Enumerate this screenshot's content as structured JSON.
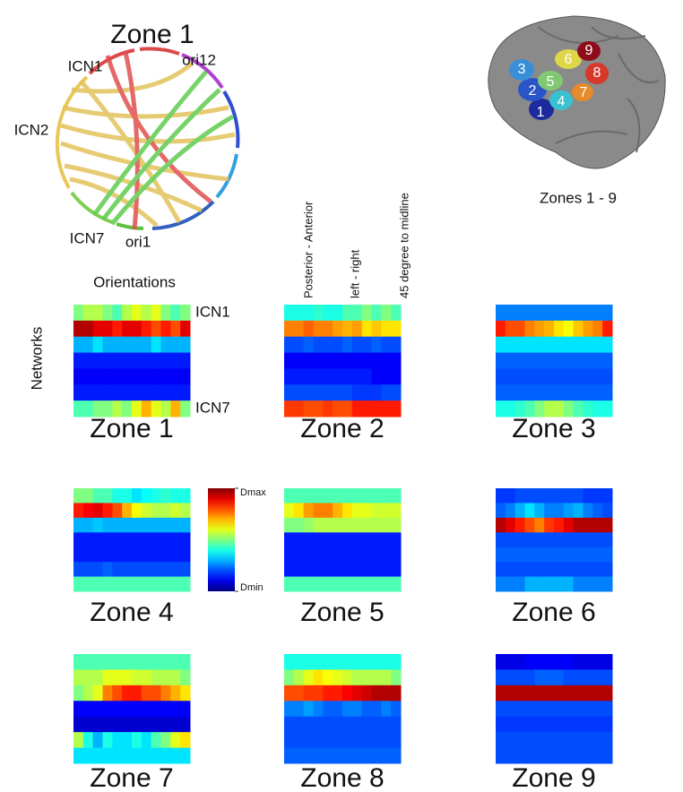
{
  "chord": {
    "title": "Zone 1",
    "labels": [
      "ICN1",
      "ori12",
      "ICN2",
      "ICN7",
      "ori1"
    ]
  },
  "brain": {
    "zone_numbers": [
      "1",
      "2",
      "3",
      "4",
      "5",
      "6",
      "7",
      "8",
      "9"
    ],
    "caption": "Zones 1 - 9"
  },
  "chart_data": {
    "type": "heatmap",
    "x_label": "Orientations",
    "y_label": "Networks",
    "row_labels": [
      "ICN1",
      null,
      null,
      null,
      null,
      null,
      "ICN7"
    ],
    "column_annotations": [
      "Posterior - Anterior",
      "left - right",
      "45 degree to midline"
    ],
    "clim": [
      0,
      1
    ],
    "colorbar_ticks": [
      {
        "value": 1,
        "label": "Dmax"
      },
      {
        "value": 0,
        "label": "Dmin"
      }
    ],
    "panels": [
      {
        "title": "Zone 1",
        "values": [
          [
            0.5,
            0.55,
            0.55,
            0.5,
            0.45,
            0.55,
            0.6,
            0.55,
            0.6,
            0.5,
            0.45,
            0.5
          ],
          [
            0.95,
            0.95,
            0.9,
            0.9,
            0.85,
            0.9,
            0.9,
            0.85,
            0.8,
            0.85,
            0.8,
            0.9
          ],
          [
            0.3,
            0.3,
            0.35,
            0.3,
            0.3,
            0.3,
            0.3,
            0.3,
            0.35,
            0.3,
            0.3,
            0.3
          ],
          [
            0.15,
            0.15,
            0.15,
            0.15,
            0.15,
            0.15,
            0.15,
            0.15,
            0.15,
            0.15,
            0.15,
            0.15
          ],
          [
            0.12,
            0.12,
            0.12,
            0.12,
            0.12,
            0.12,
            0.12,
            0.12,
            0.12,
            0.12,
            0.12,
            0.12
          ],
          [
            0.15,
            0.15,
            0.15,
            0.15,
            0.15,
            0.15,
            0.15,
            0.15,
            0.15,
            0.15,
            0.15,
            0.15
          ],
          [
            0.45,
            0.45,
            0.5,
            0.5,
            0.55,
            0.5,
            0.6,
            0.7,
            0.6,
            0.55,
            0.7,
            0.5
          ]
        ]
      },
      {
        "title": "Zone 2",
        "values": [
          [
            0.4,
            0.4,
            0.4,
            0.42,
            0.4,
            0.4,
            0.45,
            0.45,
            0.5,
            0.45,
            0.5,
            0.45
          ],
          [
            0.75,
            0.75,
            0.78,
            0.75,
            0.75,
            0.72,
            0.7,
            0.72,
            0.65,
            0.68,
            0.65,
            0.65
          ],
          [
            0.2,
            0.2,
            0.22,
            0.2,
            0.2,
            0.2,
            0.22,
            0.2,
            0.2,
            0.22,
            0.2,
            0.2
          ],
          [
            0.12,
            0.12,
            0.12,
            0.12,
            0.12,
            0.12,
            0.12,
            0.12,
            0.12,
            0.12,
            0.12,
            0.12
          ],
          [
            0.15,
            0.15,
            0.15,
            0.15,
            0.15,
            0.15,
            0.15,
            0.15,
            0.15,
            0.12,
            0.12,
            0.12
          ],
          [
            0.2,
            0.2,
            0.2,
            0.2,
            0.2,
            0.2,
            0.2,
            0.18,
            0.18,
            0.18,
            0.2,
            0.2
          ],
          [
            0.82,
            0.82,
            0.8,
            0.8,
            0.82,
            0.8,
            0.8,
            0.85,
            0.85,
            0.85,
            0.85,
            0.85
          ]
        ]
      },
      {
        "title": "Zone 3",
        "values": [
          [
            0.25,
            0.25,
            0.25,
            0.25,
            0.25,
            0.25,
            0.25,
            0.25,
            0.25,
            0.25,
            0.25,
            0.25
          ],
          [
            0.85,
            0.8,
            0.8,
            0.75,
            0.72,
            0.7,
            0.65,
            0.62,
            0.68,
            0.72,
            0.75,
            0.85
          ],
          [
            0.35,
            0.35,
            0.35,
            0.35,
            0.35,
            0.35,
            0.35,
            0.35,
            0.35,
            0.35,
            0.35,
            0.35
          ],
          [
            0.22,
            0.22,
            0.22,
            0.22,
            0.22,
            0.22,
            0.22,
            0.22,
            0.22,
            0.22,
            0.22,
            0.22
          ],
          [
            0.2,
            0.2,
            0.2,
            0.2,
            0.2,
            0.2,
            0.2,
            0.2,
            0.2,
            0.2,
            0.2,
            0.2
          ],
          [
            0.22,
            0.22,
            0.22,
            0.22,
            0.22,
            0.22,
            0.22,
            0.22,
            0.22,
            0.22,
            0.22,
            0.22
          ],
          [
            0.4,
            0.4,
            0.42,
            0.45,
            0.5,
            0.55,
            0.55,
            0.5,
            0.45,
            0.42,
            0.4,
            0.4
          ]
        ]
      },
      {
        "title": "Zone 4",
        "values": [
          [
            0.5,
            0.5,
            0.45,
            0.45,
            0.4,
            0.4,
            0.35,
            0.38,
            0.4,
            0.42,
            0.4,
            0.4
          ],
          [
            0.85,
            0.88,
            0.9,
            0.85,
            0.8,
            0.7,
            0.62,
            0.58,
            0.55,
            0.55,
            0.58,
            0.55
          ],
          [
            0.3,
            0.3,
            0.32,
            0.3,
            0.3,
            0.3,
            0.3,
            0.3,
            0.3,
            0.3,
            0.3,
            0.3
          ],
          [
            0.15,
            0.15,
            0.15,
            0.15,
            0.15,
            0.15,
            0.15,
            0.15,
            0.15,
            0.15,
            0.15,
            0.15
          ],
          [
            0.15,
            0.15,
            0.15,
            0.15,
            0.15,
            0.15,
            0.15,
            0.15,
            0.15,
            0.15,
            0.15,
            0.15
          ],
          [
            0.2,
            0.2,
            0.2,
            0.22,
            0.2,
            0.2,
            0.2,
            0.2,
            0.2,
            0.2,
            0.2,
            0.2
          ],
          [
            0.45,
            0.45,
            0.45,
            0.45,
            0.45,
            0.45,
            0.45,
            0.45,
            0.45,
            0.45,
            0.45,
            0.45
          ]
        ]
      },
      {
        "title": "Zone 5",
        "values": [
          [
            0.45,
            0.45,
            0.45,
            0.45,
            0.45,
            0.45,
            0.45,
            0.45,
            0.45,
            0.45,
            0.45,
            0.45
          ],
          [
            0.6,
            0.65,
            0.72,
            0.75,
            0.75,
            0.7,
            0.65,
            0.6,
            0.6,
            0.58,
            0.58,
            0.58
          ],
          [
            0.5,
            0.5,
            0.52,
            0.55,
            0.55,
            0.55,
            0.55,
            0.55,
            0.55,
            0.55,
            0.55,
            0.55
          ],
          [
            0.15,
            0.15,
            0.15,
            0.15,
            0.15,
            0.15,
            0.15,
            0.15,
            0.15,
            0.15,
            0.15,
            0.15
          ],
          [
            0.15,
            0.15,
            0.15,
            0.15,
            0.15,
            0.15,
            0.15,
            0.15,
            0.15,
            0.15,
            0.15,
            0.15
          ],
          [
            0.15,
            0.15,
            0.15,
            0.15,
            0.15,
            0.15,
            0.15,
            0.15,
            0.15,
            0.15,
            0.15,
            0.15
          ],
          [
            0.45,
            0.45,
            0.45,
            0.45,
            0.45,
            0.45,
            0.45,
            0.45,
            0.45,
            0.45,
            0.45,
            0.45
          ]
        ]
      },
      {
        "title": "Zone 6",
        "values": [
          [
            0.18,
            0.18,
            0.2,
            0.2,
            0.2,
            0.2,
            0.2,
            0.2,
            0.2,
            0.18,
            0.18,
            0.18
          ],
          [
            0.22,
            0.25,
            0.3,
            0.35,
            0.3,
            0.25,
            0.25,
            0.28,
            0.3,
            0.25,
            0.22,
            0.2
          ],
          [
            0.95,
            0.9,
            0.85,
            0.8,
            0.75,
            0.82,
            0.85,
            0.9,
            0.95,
            0.95,
            0.95,
            0.95
          ],
          [
            0.2,
            0.2,
            0.2,
            0.2,
            0.2,
            0.2,
            0.2,
            0.2,
            0.2,
            0.2,
            0.2,
            0.2
          ],
          [
            0.22,
            0.22,
            0.22,
            0.22,
            0.22,
            0.22,
            0.22,
            0.22,
            0.22,
            0.22,
            0.22,
            0.22
          ],
          [
            0.2,
            0.2,
            0.2,
            0.2,
            0.2,
            0.2,
            0.2,
            0.2,
            0.2,
            0.2,
            0.2,
            0.2
          ],
          [
            0.25,
            0.25,
            0.25,
            0.3,
            0.3,
            0.3,
            0.3,
            0.3,
            0.25,
            0.25,
            0.25,
            0.25
          ]
        ]
      },
      {
        "title": "Zone 7",
        "values": [
          [
            0.45,
            0.45,
            0.45,
            0.45,
            0.45,
            0.45,
            0.45,
            0.45,
            0.45,
            0.45,
            0.45,
            0.45
          ],
          [
            0.55,
            0.55,
            0.55,
            0.6,
            0.6,
            0.6,
            0.58,
            0.58,
            0.55,
            0.55,
            0.55,
            0.5
          ],
          [
            0.5,
            0.55,
            0.6,
            0.75,
            0.8,
            0.85,
            0.85,
            0.8,
            0.8,
            0.75,
            0.7,
            0.65
          ],
          [
            0.12,
            0.12,
            0.12,
            0.12,
            0.12,
            0.12,
            0.12,
            0.12,
            0.12,
            0.12,
            0.12,
            0.12
          ],
          [
            0.08,
            0.08,
            0.08,
            0.08,
            0.08,
            0.08,
            0.08,
            0.08,
            0.08,
            0.08,
            0.08,
            0.08
          ],
          [
            0.55,
            0.4,
            0.3,
            0.4,
            0.35,
            0.35,
            0.4,
            0.35,
            0.45,
            0.5,
            0.6,
            0.65
          ],
          [
            0.35,
            0.35,
            0.35,
            0.35,
            0.35,
            0.35,
            0.35,
            0.35,
            0.35,
            0.35,
            0.35,
            0.35
          ]
        ]
      },
      {
        "title": "Zone 8",
        "values": [
          [
            0.4,
            0.4,
            0.4,
            0.4,
            0.4,
            0.4,
            0.4,
            0.4,
            0.4,
            0.4,
            0.4,
            0.4
          ],
          [
            0.5,
            0.55,
            0.6,
            0.65,
            0.62,
            0.6,
            0.58,
            0.55,
            0.55,
            0.55,
            0.55,
            0.5
          ],
          [
            0.8,
            0.8,
            0.82,
            0.82,
            0.85,
            0.85,
            0.88,
            0.9,
            0.92,
            0.95,
            0.95,
            0.95
          ],
          [
            0.25,
            0.25,
            0.28,
            0.25,
            0.22,
            0.22,
            0.25,
            0.25,
            0.22,
            0.22,
            0.25,
            0.22
          ],
          [
            0.2,
            0.2,
            0.2,
            0.2,
            0.2,
            0.2,
            0.2,
            0.2,
            0.2,
            0.2,
            0.2,
            0.2
          ],
          [
            0.2,
            0.2,
            0.2,
            0.2,
            0.2,
            0.2,
            0.2,
            0.2,
            0.2,
            0.2,
            0.2,
            0.2
          ],
          [
            0.22,
            0.22,
            0.22,
            0.22,
            0.22,
            0.22,
            0.22,
            0.22,
            0.22,
            0.22,
            0.22,
            0.22
          ]
        ]
      },
      {
        "title": "Zone 9",
        "values": [
          [
            0.1,
            0.1,
            0.1,
            0.12,
            0.12,
            0.12,
            0.12,
            0.12,
            0.1,
            0.1,
            0.1,
            0.1
          ],
          [
            0.2,
            0.2,
            0.2,
            0.2,
            0.22,
            0.22,
            0.22,
            0.2,
            0.2,
            0.2,
            0.2,
            0.2
          ],
          [
            0.95,
            0.95,
            0.95,
            0.95,
            0.95,
            0.95,
            0.95,
            0.95,
            0.95,
            0.95,
            0.95,
            0.95
          ],
          [
            0.2,
            0.2,
            0.2,
            0.2,
            0.2,
            0.2,
            0.2,
            0.2,
            0.2,
            0.2,
            0.2,
            0.2
          ],
          [
            0.18,
            0.18,
            0.18,
            0.18,
            0.18,
            0.18,
            0.18,
            0.18,
            0.18,
            0.18,
            0.18,
            0.18
          ],
          [
            0.2,
            0.2,
            0.2,
            0.2,
            0.2,
            0.2,
            0.2,
            0.2,
            0.2,
            0.2,
            0.2,
            0.2
          ],
          [
            0.2,
            0.2,
            0.2,
            0.2,
            0.2,
            0.2,
            0.2,
            0.2,
            0.2,
            0.2,
            0.2,
            0.2
          ]
        ]
      }
    ]
  }
}
